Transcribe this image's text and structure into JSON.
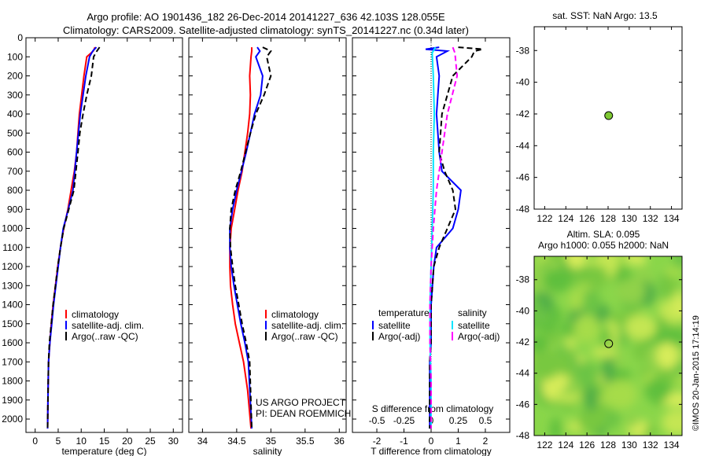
{
  "header": {
    "line1": "Argo profile: AO 1901436_182 26-Dec-2014 20141227_636 42.103S 128.055E",
    "line2": "Climatology: CARS2009. Satellite-adjusted climatology: synTS_20141227.nc (0.34d later)"
  },
  "colors": {
    "climatology": "#ff0000",
    "satellite": "#0000ff",
    "argo": "#000000",
    "salinity_satellite": "#00e5ff",
    "salinity_argo": "#ff00ff",
    "dot": "#7ec832",
    "slamap_base": "#8ad64a"
  },
  "chart_data": [
    {
      "id": "temperature",
      "type": "line",
      "xlabel": "temperature (deg C)",
      "ylabel": "",
      "xlim": [
        -2,
        32
      ],
      "ylim": [
        2070,
        0
      ],
      "xticks": [
        0,
        5,
        10,
        15,
        20,
        25,
        30
      ],
      "yticks": [
        0,
        100,
        200,
        300,
        400,
        500,
        600,
        700,
        800,
        900,
        1000,
        1100,
        1200,
        1300,
        1400,
        1500,
        1600,
        1700,
        1800,
        1900,
        2000
      ],
      "legend": [
        "climatology",
        "satellite-adj. clim.",
        "Argo(..raw -QC)"
      ],
      "series": [
        {
          "name": "climatology",
          "style": "solid",
          "x": [
            13.0,
            12.6,
            11.2,
            10.6,
            10.1,
            9.6,
            9.3,
            9.0,
            8.5,
            7.8,
            7.1,
            6.2,
            5.5,
            4.9,
            4.4,
            3.9,
            3.5,
            3.2,
            2.9,
            2.8,
            2.7
          ],
          "y": [
            50,
            70,
            100,
            200,
            300,
            400,
            500,
            600,
            700,
            800,
            900,
            1000,
            1100,
            1200,
            1300,
            1400,
            1500,
            1600,
            1700,
            1850,
            2050
          ]
        },
        {
          "name": "satellite-adj. clim.",
          "style": "solid",
          "x": [
            13.3,
            12.5,
            11.8,
            11.0,
            10.4,
            9.8,
            9.4,
            9.0,
            8.2,
            7.2,
            6.1,
            5.5,
            5.0,
            4.5,
            4.0,
            3.6,
            3.2,
            2.9,
            2.8,
            2.7
          ],
          "y": [
            50,
            70,
            100,
            200,
            300,
            400,
            500,
            600,
            800,
            900,
            1000,
            1100,
            1200,
            1300,
            1400,
            1500,
            1600,
            1700,
            1850,
            2050
          ]
        },
        {
          "name": "Argo(..raw -QC)",
          "style": "dashed",
          "x": [
            14.0,
            13.4,
            12.7,
            12.2,
            11.2,
            10.4,
            9.7,
            9.3,
            8.4,
            7.3,
            6.2,
            5.5,
            4.9,
            4.4,
            3.9,
            3.5,
            3.1,
            2.9,
            2.8,
            2.7
          ],
          "y": [
            50,
            70,
            100,
            200,
            300,
            400,
            500,
            600,
            800,
            900,
            1000,
            1100,
            1200,
            1300,
            1400,
            1500,
            1600,
            1700,
            1850,
            2050
          ]
        }
      ]
    },
    {
      "id": "salinity",
      "type": "line",
      "xlabel": "salinity",
      "ylabel": "",
      "xlim": [
        33.8,
        36.1
      ],
      "ylim": [
        2070,
        0
      ],
      "xticks": [
        34,
        34.5,
        35,
        35.5,
        36
      ],
      "legend": [
        "climatology",
        "satellite-adj. clim.",
        "Argo(..raw -QC)"
      ],
      "annotation": [
        "US ARGO PROJECT",
        "PI: DEAN ROEMMICH"
      ],
      "series": [
        {
          "name": "climatology",
          "style": "solid",
          "x": [
            34.72,
            34.72,
            34.71,
            34.69,
            34.7,
            34.69,
            34.66,
            34.62,
            34.58,
            34.52,
            34.47,
            34.42,
            34.4,
            34.4,
            34.41,
            34.44,
            34.48,
            34.54,
            34.6,
            34.66,
            34.71
          ],
          "y": [
            50,
            70,
            100,
            200,
            300,
            400,
            500,
            600,
            700,
            800,
            900,
            1000,
            1100,
            1200,
            1300,
            1400,
            1500,
            1600,
            1700,
            1850,
            2050
          ]
        },
        {
          "name": "satellite-adj. clim.",
          "style": "solid",
          "x": [
            34.8,
            34.84,
            34.78,
            34.88,
            34.85,
            34.76,
            34.7,
            34.64,
            34.57,
            34.5,
            34.44,
            34.4,
            34.4,
            34.42,
            34.46,
            34.51,
            34.56,
            34.62,
            34.67,
            34.72
          ],
          "y": [
            50,
            70,
            100,
            200,
            300,
            400,
            500,
            600,
            700,
            800,
            900,
            1000,
            1100,
            1200,
            1300,
            1400,
            1500,
            1600,
            1700,
            2050
          ]
        },
        {
          "name": "Argo(..raw -QC)",
          "style": "dashed",
          "x": [
            34.88,
            35.0,
            34.94,
            35.0,
            34.9,
            34.78,
            34.7,
            34.63,
            34.56,
            34.48,
            34.42,
            34.4,
            34.41,
            34.44,
            34.48,
            34.53,
            34.58,
            34.64,
            34.69,
            34.72
          ],
          "y": [
            50,
            70,
            100,
            200,
            300,
            400,
            500,
            600,
            700,
            800,
            900,
            1000,
            1100,
            1200,
            1300,
            1400,
            1500,
            1600,
            1700,
            2050
          ]
        }
      ]
    },
    {
      "id": "differences",
      "type": "line",
      "xlabel": "T difference from climatology",
      "top_axis_label": "S difference from climatology",
      "ylabel": "",
      "xlim": [
        -2.9,
        2.9
      ],
      "ylim": [
        2070,
        0
      ],
      "xticks": [
        -2,
        -1,
        0,
        1,
        2
      ],
      "top_ticks": [
        -0.5,
        -0.25,
        0,
        0.25,
        0.5
      ],
      "legend_headers": [
        "temperature",
        "salinity"
      ],
      "legend": [
        "satellite",
        "Argo(-adj)",
        "satellite",
        "Argo(-adj)"
      ],
      "series": [
        {
          "name": "temperature satellite",
          "style": "solid",
          "x": [
            0.3,
            -0.2,
            0.6,
            0.2,
            0.3,
            0.2,
            0.3,
            0.4,
            1.1,
            1.0,
            0.8,
            0.2,
            0.1,
            0.05,
            0,
            0,
            0,
            -0.05,
            -0.05,
            -0.05
          ],
          "y": [
            50,
            60,
            70,
            100,
            200,
            400,
            600,
            700,
            800,
            900,
            1000,
            1100,
            1200,
            1300,
            1400,
            1500,
            1600,
            1700,
            1850,
            2050
          ]
        },
        {
          "name": "temperature Argo(-adj)",
          "style": "dashed",
          "x": [
            1.0,
            1.9,
            1.6,
            1.5,
            0.8,
            0.4,
            0.3,
            0.5,
            0.8,
            0.9,
            0.6,
            0.3,
            0.1,
            0.05,
            0,
            0,
            0,
            -0.05,
            -0.05,
            -0.05
          ],
          "y": [
            50,
            60,
            70,
            100,
            200,
            400,
            600,
            700,
            800,
            900,
            1000,
            1100,
            1200,
            1300,
            1400,
            1500,
            1600,
            1700,
            1850,
            2050
          ]
        },
        {
          "name": "salinity satellite",
          "style": "solid",
          "x": [
            0.04,
            0.01,
            0.02,
            0.03,
            0.02,
            0.02,
            0.01,
            0.0,
            -0.01,
            -0.01,
            -0.005,
            0,
            0,
            0
          ],
          "y": [
            50,
            80,
            200,
            400,
            600,
            800,
            1000,
            1200,
            1400,
            1600,
            1700,
            1800,
            1900,
            2050
          ]
        },
        {
          "name": "salinity Argo(-adj)",
          "style": "dashed",
          "x": [
            0.2,
            0.22,
            0.24,
            0.15,
            0.1,
            0.05,
            0.02,
            0.0,
            -0.01,
            -0.01,
            0,
            0,
            0
          ],
          "y": [
            50,
            80,
            200,
            400,
            600,
            800,
            1000,
            1200,
            1400,
            1600,
            1800,
            1900,
            2050
          ]
        }
      ]
    },
    {
      "id": "sst_map",
      "type": "scatter",
      "title": "sat. SST: NaN Argo: 13.5",
      "xlim": [
        121,
        135
      ],
      "ylim": [
        -48,
        -36.5
      ],
      "xticks": [
        122,
        124,
        126,
        128,
        130,
        132,
        134
      ],
      "yticks": [
        -38,
        -40,
        -42,
        -44,
        -46,
        -48
      ],
      "points": [
        {
          "x": 128.055,
          "y": -42.103
        }
      ]
    },
    {
      "id": "sla_map",
      "type": "heatmap",
      "title_line1": "Altim. SLA: 0.095",
      "title_line2": "Argo h1000: 0.055 h2000: NaN",
      "xlim": [
        121,
        135
      ],
      "ylim": [
        -48,
        -36.5
      ],
      "xticks": [
        122,
        124,
        126,
        128,
        130,
        132,
        134
      ],
      "yticks": [
        -38,
        -40,
        -42,
        -44,
        -46,
        -48
      ],
      "points": [
        {
          "x": 128.055,
          "y": -42.103
        }
      ]
    }
  ],
  "footer": {
    "credit": "©IMOS 20-Jan-2015 17:14:19"
  }
}
